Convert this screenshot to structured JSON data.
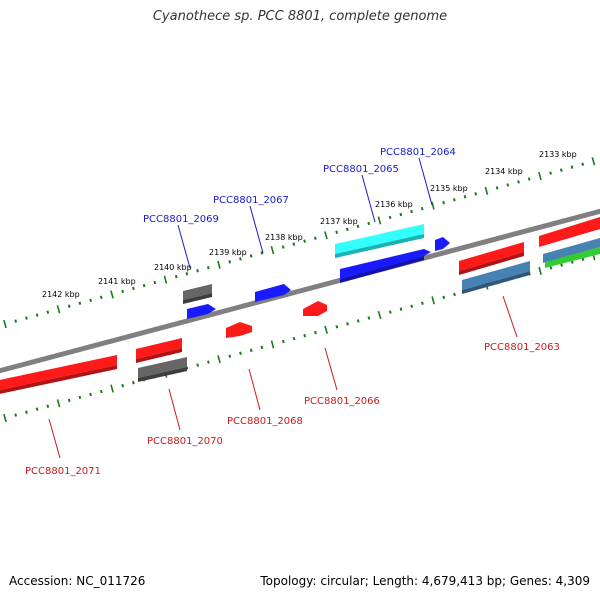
{
  "title": "Cyanothece sp. PCC 8801, complete genome",
  "footer": {
    "accession": "Accession: NC_011726",
    "summary": "Topology: circular; Length: 4,679,413 bp; Genes: 4,309"
  },
  "colors": {
    "backbone": "#808080",
    "tick": "#1a7a1a",
    "label_blue": "#1a1acc",
    "label_red": "#cc1a1a",
    "red": "#ff1a1a",
    "blue": "#1a1aff",
    "cyan": "#33ffff",
    "grey": "#666666",
    "steel": "#4682b4",
    "green": "#33cc33"
  },
  "kbp_labels": [
    "2142 kbp",
    "2141 kbp",
    "2140 kbp",
    "2139 kbp",
    "2138 kbp",
    "2137 kbp",
    "2136 kbp",
    "2135 kbp",
    "2134 kbp",
    "2133 kbp"
  ],
  "genes": [
    {
      "label": "PCC8801_2071",
      "color": "red",
      "label_color": "label_red"
    },
    {
      "label": "PCC8801_2070",
      "color": "red",
      "label_color": "label_red"
    },
    {
      "label": "PCC8801_2069",
      "color": "blue",
      "label_color": "label_blue"
    },
    {
      "label": "PCC8801_2068",
      "color": "red",
      "label_color": "label_red"
    },
    {
      "label": "PCC8801_2067",
      "color": "blue",
      "label_color": "label_blue"
    },
    {
      "label": "PCC8801_2066",
      "color": "red",
      "label_color": "label_red"
    },
    {
      "label": "PCC8801_2065",
      "color": "blue",
      "label_color": "label_blue"
    },
    {
      "label": "PCC8801_2064",
      "color": "blue",
      "label_color": "label_blue"
    },
    {
      "label": "PCC8801_2063",
      "color": "red",
      "label_color": "label_red"
    }
  ]
}
